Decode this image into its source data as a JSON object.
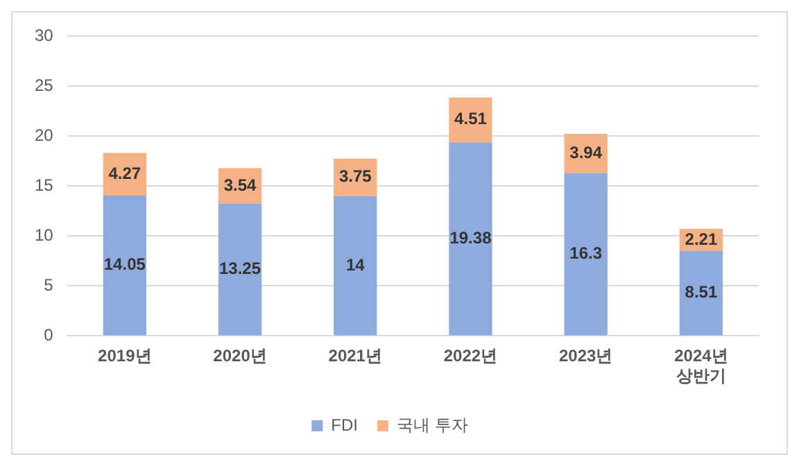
{
  "chart_data": {
    "type": "bar",
    "stacked": true,
    "categories": [
      "2019년",
      "2020년",
      "2021년",
      "2022년",
      "2023년",
      "2024년\n상반기"
    ],
    "series": [
      {
        "name": "FDI",
        "color": "#8faadc",
        "values": [
          14.05,
          13.25,
          14,
          19.38,
          16.3,
          8.51
        ]
      },
      {
        "name": "국내 투자",
        "color": "#f4b183",
        "values": [
          4.27,
          3.54,
          3.75,
          4.51,
          3.94,
          2.21
        ]
      }
    ],
    "ylim": [
      0,
      30
    ],
    "yticks": [
      0,
      5,
      10,
      15,
      20,
      25,
      30
    ],
    "grid": "y",
    "legend": "bottom",
    "data_labels": true
  }
}
